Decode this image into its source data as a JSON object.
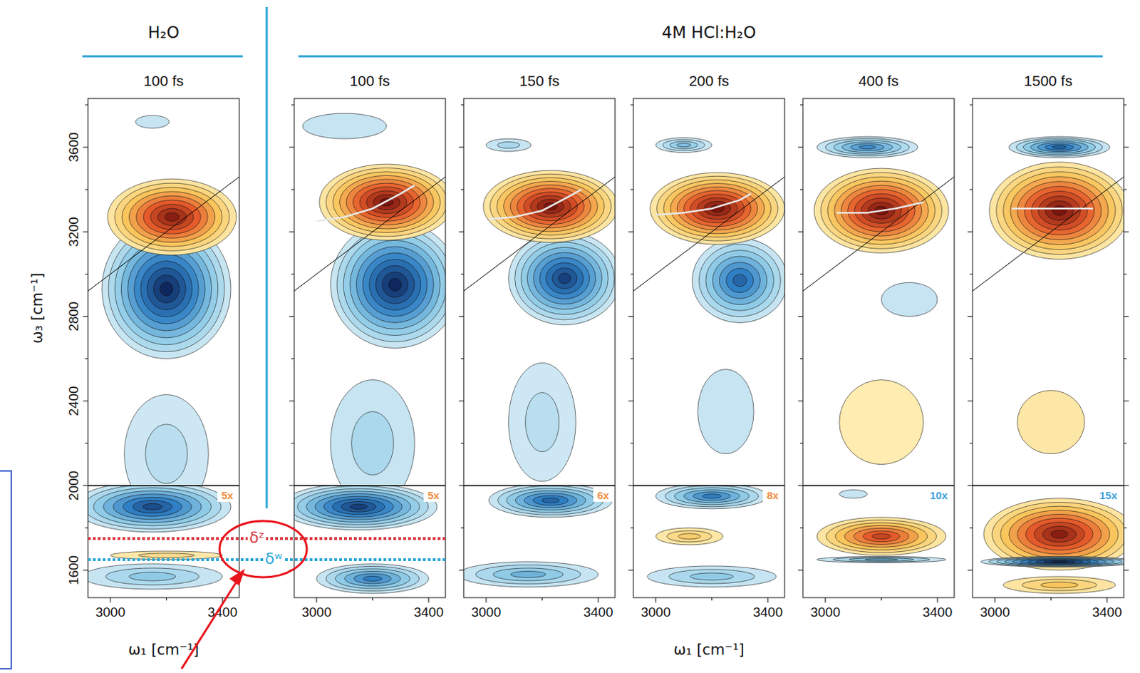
{
  "chart_data": [
    {
      "type": "contour",
      "group": "H₂O",
      "title": "100 fs",
      "x_label": "ω₁ [cm⁻¹]",
      "y_label": "ω₃ [cm⁻¹]",
      "xlim": [
        2920,
        3460
      ],
      "ylim": [
        1470,
        3830
      ],
      "xticks": [
        3000,
        3400
      ],
      "yticks": [
        1600,
        2000,
        2400,
        2800,
        3200,
        3600
      ],
      "xticks_minor": [
        3200
      ],
      "yticks_minor": [
        1800,
        2200,
        2600,
        3000,
        3400,
        3800
      ],
      "scale": {
        "below": 2000,
        "label": "5x",
        "color": "#f08a3c"
      },
      "annotations": [
        {
          "label": "δᶻ",
          "y": 1750,
          "color": "#d9343f"
        },
        {
          "label": "δʷ",
          "y": 1650,
          "color": "#2ba8d9"
        }
      ],
      "peaks": [
        {
          "w1": 3150,
          "w3": 3720,
          "dw1": 60,
          "dw3": 30,
          "amp": -0.1
        },
        {
          "w1": 3200,
          "w3": 2150,
          "dw1": 150,
          "dw3": 280,
          "amp": -0.15
        },
        {
          "w1": 3200,
          "w3": 2930,
          "dw1": 230,
          "dw3": 330,
          "amp": -0.95
        },
        {
          "w1": 3220,
          "w3": 3270,
          "dw1": 230,
          "dw3": 180,
          "amp": 0.9
        },
        {
          "w1": 3150,
          "w3": 1900,
          "dw1": 280,
          "dw3": 120,
          "amp": -0.8
        },
        {
          "w1": 3200,
          "w3": 1670,
          "dw1": 200,
          "dw3": 20,
          "amp": 0.15
        },
        {
          "w1": 3150,
          "w3": 1570,
          "dw1": 250,
          "dw3": 60,
          "amp": -0.3
        }
      ]
    },
    {
      "type": "contour",
      "group": "4M HCl:H₂O",
      "title": "100 fs",
      "tick_labels": "x",
      "xlim": [
        2920,
        3460
      ],
      "ylim": [
        1470,
        3830
      ],
      "xticks": [
        3000,
        3400
      ],
      "yticks": [
        1600,
        2000,
        2400,
        2800,
        3200,
        3600
      ],
      "xticks_minor": [
        3200
      ],
      "yticks_minor": [
        1800,
        2200,
        2600,
        3000,
        3400,
        3800
      ],
      "scale": {
        "below": 2000,
        "label": "5x",
        "color": "#f08a3c"
      },
      "center_line": {
        "x": [
          3000,
          3100,
          3200,
          3300,
          3350
        ],
        "y": [
          3250,
          3270,
          3310,
          3380,
          3420
        ]
      },
      "peaks": [
        {
          "w1": 3100,
          "w3": 3700,
          "dw1": 150,
          "dw3": 60,
          "amp": -0.1
        },
        {
          "w1": 3200,
          "w3": 2200,
          "dw1": 150,
          "dw3": 300,
          "amp": -0.2
        },
        {
          "w1": 3280,
          "w3": 2950,
          "dw1": 230,
          "dw3": 300,
          "amp": -0.95
        },
        {
          "w1": 3250,
          "w3": 3340,
          "dw1": 240,
          "dw3": 180,
          "amp": 0.95
        },
        {
          "w1": 3150,
          "w3": 1900,
          "dw1": 280,
          "dw3": 110,
          "amp": -0.85
        },
        {
          "w1": 3200,
          "w3": 1560,
          "dw1": 200,
          "dw3": 70,
          "amp": -0.6
        }
      ]
    },
    {
      "type": "contour",
      "group": "4M HCl:H₂O",
      "title": "150 fs",
      "tick_labels": "x",
      "xlim": [
        2920,
        3460
      ],
      "ylim": [
        1470,
        3830
      ],
      "xticks": [
        3000,
        3400
      ],
      "yticks": [
        1600,
        2000,
        2400,
        2800,
        3200,
        3600
      ],
      "xticks_minor": [
        3200
      ],
      "yticks_minor": [
        1800,
        2200,
        2600,
        3000,
        3400,
        3800
      ],
      "scale": {
        "below": 2000,
        "label": "6x",
        "color": "#f08a3c"
      },
      "center_line": {
        "x": [
          3010,
          3100,
          3200,
          3300,
          3340
        ],
        "y": [
          3260,
          3270,
          3300,
          3370,
          3400
        ]
      },
      "peaks": [
        {
          "w1": 3080,
          "w3": 3610,
          "dw1": 80,
          "dw3": 30,
          "amp": -0.2
        },
        {
          "w1": 3200,
          "w3": 2300,
          "dw1": 120,
          "dw3": 280,
          "amp": -0.15
        },
        {
          "w1": 3280,
          "w3": 2980,
          "dw1": 200,
          "dw3": 220,
          "amp": -0.85
        },
        {
          "w1": 3230,
          "w3": 3320,
          "dw1": 240,
          "dw3": 170,
          "amp": 0.95
        },
        {
          "w1": 3230,
          "w3": 1930,
          "dw1": 220,
          "dw3": 80,
          "amp": -0.7
        },
        {
          "w1": 3150,
          "w3": 1580,
          "dw1": 250,
          "dw3": 60,
          "amp": -0.4
        }
      ]
    },
    {
      "type": "contour",
      "group": "4M HCl:H₂O",
      "title": "200 fs",
      "tick_labels": "x",
      "x_label": "ω₁ [cm⁻¹]",
      "xlim": [
        2920,
        3460
      ],
      "ylim": [
        1470,
        3830
      ],
      "xticks": [
        3000,
        3400
      ],
      "yticks": [
        1600,
        2000,
        2400,
        2800,
        3200,
        3600
      ],
      "xticks_minor": [
        3200
      ],
      "yticks_minor": [
        1800,
        2200,
        2600,
        3000,
        3400,
        3800
      ],
      "scale": {
        "below": 2000,
        "label": "8x",
        "color": "#f08a3c"
      },
      "center_line": {
        "x": [
          3000,
          3100,
          3200,
          3300,
          3340
        ],
        "y": [
          3280,
          3290,
          3310,
          3350,
          3380
        ]
      },
      "peaks": [
        {
          "w1": 3100,
          "w3": 3610,
          "dw1": 100,
          "dw3": 35,
          "amp": -0.35
        },
        {
          "w1": 3250,
          "w3": 2350,
          "dw1": 100,
          "dw3": 200,
          "amp": -0.1
        },
        {
          "w1": 3300,
          "w3": 2970,
          "dw1": 170,
          "dw3": 200,
          "amp": -0.7
        },
        {
          "w1": 3220,
          "w3": 3310,
          "dw1": 240,
          "dw3": 170,
          "amp": 0.95
        },
        {
          "w1": 3200,
          "w3": 1950,
          "dw1": 200,
          "dw3": 60,
          "amp": -0.6
        },
        {
          "w1": 3120,
          "w3": 1760,
          "dw1": 120,
          "dw3": 40,
          "amp": 0.25
        },
        {
          "w1": 3200,
          "w3": 1570,
          "dw1": 230,
          "dw3": 50,
          "amp": -0.3
        }
      ]
    },
    {
      "type": "contour",
      "group": "4M HCl:H₂O",
      "title": "400 fs",
      "tick_labels": "x",
      "xlim": [
        2920,
        3460
      ],
      "ylim": [
        1470,
        3830
      ],
      "xticks": [
        3000,
        3400
      ],
      "yticks": [
        1600,
        2000,
        2400,
        2800,
        3200,
        3600
      ],
      "xticks_minor": [
        3200
      ],
      "yticks_minor": [
        1800,
        2200,
        2600,
        3000,
        3400,
        3800
      ],
      "scale": {
        "below": 2000,
        "label": "10x",
        "color": "#3aa0d8"
      },
      "center_line": {
        "x": [
          3040,
          3150,
          3250,
          3350
        ],
        "y": [
          3290,
          3290,
          3310,
          3340
        ]
      },
      "peaks": [
        {
          "w1": 3200,
          "w3": 2300,
          "dw1": 150,
          "dw3": 200,
          "amp": 0.05
        },
        {
          "w1": 3300,
          "w3": 2880,
          "dw1": 100,
          "dw3": 80,
          "amp": -0.1
        },
        {
          "w1": 3150,
          "w3": 3600,
          "dw1": 180,
          "dw3": 50,
          "amp": -0.55
        },
        {
          "w1": 3200,
          "w3": 3300,
          "dw1": 240,
          "dw3": 200,
          "amp": 0.95
        },
        {
          "w1": 3100,
          "w3": 1960,
          "dw1": 50,
          "dw3": 20,
          "amp": -0.1
        },
        {
          "w1": 3200,
          "w3": 1760,
          "dw1": 230,
          "dw3": 90,
          "amp": 0.7
        },
        {
          "w1": 3200,
          "w3": 1650,
          "dw1": 230,
          "dw3": 15,
          "amp": -0.4
        }
      ]
    },
    {
      "type": "contour",
      "group": "4M HCl:H₂O",
      "title": "1500 fs",
      "tick_labels": "x",
      "xlim": [
        2920,
        3460
      ],
      "ylim": [
        1470,
        3830
      ],
      "xticks": [
        3000,
        3400
      ],
      "yticks": [
        1600,
        2000,
        2400,
        2800,
        3200,
        3600
      ],
      "xticks_minor": [
        3200
      ],
      "yticks_minor": [
        1800,
        2200,
        2600,
        3000,
        3400,
        3800
      ],
      "scale": {
        "below": 2000,
        "label": "15x",
        "color": "#3aa0d8"
      },
      "center_line": {
        "x": [
          3060,
          3150,
          3250,
          3350
        ],
        "y": [
          3310,
          3310,
          3310,
          3310
        ]
      },
      "peaks": [
        {
          "w1": 3200,
          "w3": 2300,
          "dw1": 120,
          "dw3": 150,
          "amp": 0.08
        },
        {
          "w1": 3230,
          "w3": 3600,
          "dw1": 180,
          "dw3": 50,
          "amp": -0.7
        },
        {
          "w1": 3230,
          "w3": 3300,
          "dw1": 250,
          "dw3": 230,
          "amp": 0.95
        },
        {
          "w1": 3230,
          "w3": 1770,
          "dw1": 270,
          "dw3": 170,
          "amp": 0.9
        },
        {
          "w1": 3230,
          "w3": 1530,
          "dw1": 200,
          "dw3": 40,
          "amp": 0.3
        },
        {
          "w1": 3230,
          "w3": 1640,
          "dw1": 280,
          "dw3": 25,
          "amp": -0.95
        }
      ]
    }
  ]
}
